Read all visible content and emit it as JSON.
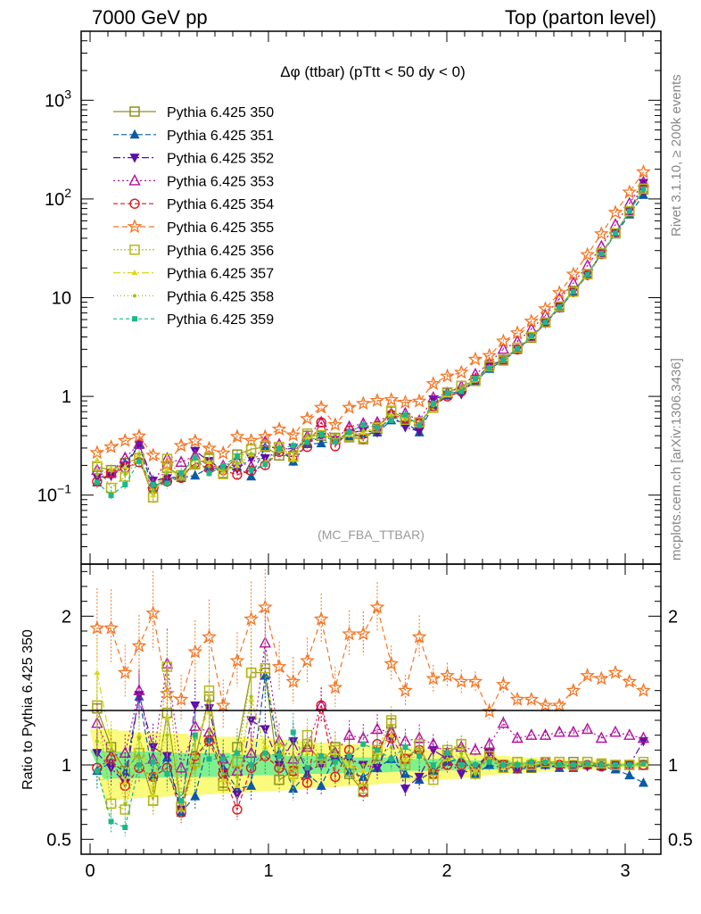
{
  "header": {
    "left": "7000 GeV pp",
    "right": "Top (parton level)"
  },
  "plot_title": "Δφ (ttbar) (pTtt < 50 dy < 0)",
  "side_labels": {
    "rivet": "Rivet 3.1.10, ≥ 200k events",
    "mcplots": "mcplots.cern.ch [arXiv:1306.3436]"
  },
  "analysis_tag": "(MC_FBA_TTBAR)",
  "ratio_ylabel": "Ratio to Pythia 6.425 350",
  "y_ticks_main": [
    {
      "v": 0.1,
      "base": "10",
      "exp": "−1"
    },
    {
      "v": 1,
      "text": "1"
    },
    {
      "v": 10,
      "text": "10"
    },
    {
      "v": 100,
      "base": "10",
      "exp": "2"
    },
    {
      "v": 1000,
      "base": "10",
      "exp": "3"
    }
  ],
  "y_ticks_ratio": [
    "0.5",
    "1",
    "2"
  ],
  "x_ticks": [
    "0",
    "1",
    "2",
    "3"
  ],
  "colors": {
    "olive": "#8f8f1f",
    "blue": "#0b5aa8",
    "purple": "#5c0fa8",
    "magenta": "#b0129b",
    "red": "#e0141e",
    "orange": "#f57320",
    "yellowgreen": "#b6b61a",
    "yellow": "#d8d81c",
    "lime": "#9ec01a",
    "teal": "#1cb986",
    "band_yellow": "#fafa7c",
    "band_green": "#7ef08e"
  },
  "chart_data": {
    "type": "line",
    "x_range": [
      -0.05,
      3.2
    ],
    "y_range_main": [
      0.02,
      5000
    ],
    "y_scale_main": "log",
    "y_range_ratio": [
      0.4,
      2.35
    ],
    "legend_position": "top-left",
    "x": [
      0.0393,
      0.1178,
      0.1963,
      0.2749,
      0.3534,
      0.432,
      0.5105,
      0.589,
      0.6676,
      0.7461,
      0.8247,
      0.9032,
      0.9817,
      1.0603,
      1.1388,
      1.2174,
      1.2959,
      1.3744,
      1.453,
      1.5315,
      1.6101,
      1.6886,
      1.7671,
      1.8457,
      1.9242,
      2.0028,
      2.0813,
      2.1598,
      2.2384,
      2.3169,
      2.3955,
      2.474,
      2.5525,
      2.6311,
      2.7096,
      2.7882,
      2.8667,
      2.9452,
      3.0238,
      3.1023
    ],
    "reference": [
      0.14,
      0.16,
      0.22,
      0.22,
      0.125,
      0.14,
      0.22,
      0.2,
      0.16,
      0.19,
      0.23,
      0.18,
      0.19,
      0.28,
      0.26,
      0.35,
      0.39,
      0.34,
      0.41,
      0.45,
      0.44,
      0.55,
      0.58,
      0.48,
      0.85,
      1.0,
      1.12,
      1.52,
      1.9,
      2.35,
      3.05,
      4.0,
      5.5,
      8.0,
      11.5,
      17.0,
      28.0,
      45.0,
      75.0,
      125.0
    ],
    "reference_band_yellow": [
      0.24,
      0.24,
      0.23,
      0.22,
      0.22,
      0.21,
      0.21,
      0.2,
      0.2,
      0.19,
      0.19,
      0.18,
      0.18,
      0.17,
      0.17,
      0.16,
      0.15,
      0.15,
      0.14,
      0.14,
      0.13,
      0.12,
      0.12,
      0.11,
      0.1,
      0.1,
      0.09,
      0.08,
      0.07,
      0.06,
      0.05,
      0.05,
      0.04,
      0.04,
      0.03,
      0.03,
      0.03,
      0.02,
      0.02,
      0.02
    ],
    "reference_band_green": [
      0.1,
      0.09,
      0.09,
      0.09,
      0.09,
      0.08,
      0.08,
      0.08,
      0.08,
      0.08,
      0.07,
      0.07,
      0.07,
      0.07,
      0.06,
      0.06,
      0.06,
      0.06,
      0.05,
      0.05,
      0.05,
      0.05,
      0.04,
      0.04,
      0.04,
      0.04,
      0.03,
      0.03,
      0.03,
      0.03,
      0.02,
      0.02,
      0.02,
      0.02,
      0.02,
      0.02,
      0.01,
      0.01,
      0.01,
      0.01
    ],
    "series": [
      {
        "name": "Pythia 6.425 350",
        "color": "#8f8f1f",
        "marker": "square-open",
        "dash": "",
        "ratio": [
          1.38,
          1.12,
          0.96,
          1.08,
          0.76,
          1.35,
          0.72,
          1.04,
          1.46,
          0.88,
          1.12,
          1.62,
          1.62,
          0.9,
          0.96,
          1.14,
          1.02,
          1.12,
          0.94,
          0.82,
          1.06,
          1.28,
          1.04,
          1.12,
          0.94,
          1.08,
          1.14,
          0.95,
          1.08,
          1.0,
          1.02,
          0.98,
          1.02,
          1.02,
          1.02,
          1.02,
          1.0,
          1.0,
          1.0,
          1.0
        ]
      },
      {
        "name": "Pythia 6.425 351",
        "color": "#0b5aa8",
        "marker": "triangle-up",
        "dash": "6,3",
        "ratio": [
          0.96,
          1.02,
          0.95,
          1.46,
          0.92,
          1.05,
          0.68,
          0.79,
          1.18,
          0.98,
          0.84,
          0.86,
          1.6,
          1.08,
          0.84,
          0.94,
          0.86,
          1.06,
          0.95,
          0.92,
          0.98,
          1.04,
          0.94,
          0.9,
          0.96,
          1.02,
          1.04,
          0.94,
          1.0,
          0.98,
          0.97,
          0.98,
          1.0,
          0.98,
          0.98,
          1.0,
          0.99,
          0.97,
          0.93,
          0.88
        ]
      },
      {
        "name": "Pythia 6.425 352",
        "color": "#5c0fa8",
        "marker": "triangle-down",
        "dash": "8,3,2,3",
        "ratio": [
          1.08,
          0.98,
          0.88,
          1.47,
          1.12,
          1.06,
          0.7,
          1.4,
          1.38,
          0.95,
          0.8,
          1.3,
          1.24,
          1.0,
          1.16,
          0.96,
          1.0,
          1.06,
          1.04,
          1.0,
          0.98,
          1.18,
          0.84,
          0.92,
          1.1,
          1.04,
          0.94,
          0.98,
          1.08,
          0.99,
          0.98,
          0.99,
          1.0,
          0.99,
          1.0,
          0.99,
          0.99,
          1.0,
          1.0,
          1.16
        ]
      },
      {
        "name": "Pythia 6.425 353",
        "color": "#b0129b",
        "marker": "triangle-open",
        "dash": "2,3",
        "ratio": [
          1.28,
          1.06,
          1.08,
          1.5,
          1.04,
          1.68,
          0.98,
          1.26,
          1.22,
          1.04,
          0.96,
          1.08,
          1.82,
          1.16,
          1.04,
          1.12,
          1.4,
          1.08,
          1.2,
          1.18,
          1.24,
          1.22,
          1.16,
          1.18,
          1.14,
          1.08,
          1.12,
          1.1,
          1.14,
          1.28,
          1.18,
          1.2,
          1.2,
          1.22,
          1.22,
          1.24,
          1.18,
          1.22,
          1.2,
          1.18
        ]
      },
      {
        "name": "Pythia 6.425 354",
        "color": "#e0141e",
        "marker": "circle-open",
        "dash": "5,3",
        "ratio": [
          0.98,
          1.04,
          0.86,
          0.98,
          0.92,
          0.98,
          0.68,
          1.06,
          1.16,
          0.94,
          0.7,
          0.98,
          1.06,
          0.98,
          0.96,
          0.88,
          1.4,
          0.92,
          1.1,
          0.82,
          1.14,
          1.18,
          1.04,
          1.1,
          0.94,
          1.0,
          1.0,
          0.98,
          1.06,
          1.0,
          0.98,
          1.0,
          1.02,
          1.0,
          0.99,
          1.0,
          0.99,
          1.0,
          1.0,
          1.0
        ]
      },
      {
        "name": "Pythia 6.425 355",
        "color": "#f57320",
        "marker": "star-open",
        "dash": "6,4",
        "ratio": [
          1.92,
          1.92,
          1.62,
          1.8,
          2.02,
          1.48,
          1.44,
          1.76,
          1.86,
          1.4,
          1.7,
          1.98,
          2.06,
          1.66,
          1.56,
          1.7,
          1.98,
          1.52,
          1.88,
          1.88,
          2.06,
          1.68,
          1.5,
          1.86,
          1.58,
          1.6,
          1.56,
          1.56,
          1.36,
          1.54,
          1.44,
          1.44,
          1.4,
          1.4,
          1.5,
          1.6,
          1.58,
          1.62,
          1.56,
          1.5
        ]
      },
      {
        "name": "Pythia 6.425 356",
        "color": "#b6b61a",
        "marker": "square-open",
        "dash": "2,2",
        "ratio": [
          1.4,
          0.74,
          0.7,
          1.08,
          0.76,
          1.66,
          0.72,
          1.02,
          1.5,
          0.86,
          1.02,
          1.62,
          1.65,
          1.1,
          0.94,
          1.2,
          1.04,
          1.1,
          0.96,
          0.84,
          1.1,
          1.3,
          1.0,
          1.14,
          0.9,
          1.1,
          1.14,
          0.94,
          1.06,
          0.98,
          1.02,
          1.0,
          1.02,
          1.02,
          1.0,
          1.02,
          1.01,
          1.0,
          1.0,
          1.02
        ]
      },
      {
        "name": "Pythia 6.425 357",
        "color": "#d8d81c",
        "marker": "tri-small",
        "dash": "8,3,2,3",
        "ratio": [
          1.62,
          1.14,
          0.88,
          1.2,
          0.8,
          1.32,
          0.7,
          1.18,
          1.36,
          0.9,
          0.86,
          1.44,
          1.12,
          1.14,
          0.9,
          1.08,
          1.06,
          1.08,
          1.0,
          0.96,
          1.08,
          1.2,
          1.04,
          1.06,
          1.0,
          1.04,
          1.06,
          0.96,
          1.04,
          0.98,
          1.0,
          1.0,
          1.02,
          1.0,
          1.0,
          1.01,
          1.0,
          1.0,
          1.0,
          1.0
        ]
      },
      {
        "name": "Pythia 6.425 358",
        "color": "#9ec01a",
        "marker": "dot-small",
        "dash": "1,3",
        "ratio": [
          1.16,
          1.1,
          0.74,
          1.18,
          0.9,
          1.2,
          0.7,
          0.98,
          1.22,
          0.94,
          0.92,
          1.46,
          1.08,
          0.98,
          1.06,
          1.14,
          1.02,
          1.06,
          1.02,
          1.0,
          1.06,
          1.12,
          1.0,
          1.08,
          0.96,
          1.04,
          1.08,
          0.94,
          1.04,
          1.0,
          1.0,
          1.0,
          1.01,
          1.0,
          1.0,
          1.0,
          1.0,
          1.0,
          1.0,
          1.0
        ]
      },
      {
        "name": "Pythia 6.425 359",
        "color": "#1cb986",
        "marker": "square-filled",
        "dash": "4,3",
        "ratio": [
          0.96,
          0.62,
          0.58,
          1.0,
          1.02,
          0.94,
          0.76,
          1.2,
          1.04,
          1.04,
          1.08,
          1.0,
          1.08,
          1.06,
          1.22,
          0.98,
          1.06,
          1.02,
          1.06,
          1.14,
          1.1,
          1.04,
          1.12,
          1.06,
          1.0,
          1.08,
          1.0,
          1.0,
          1.02,
          1.0,
          1.0,
          1.02,
          1.02,
          1.0,
          1.0,
          1.01,
          1.0,
          1.0,
          1.0,
          1.01
        ]
      }
    ]
  }
}
